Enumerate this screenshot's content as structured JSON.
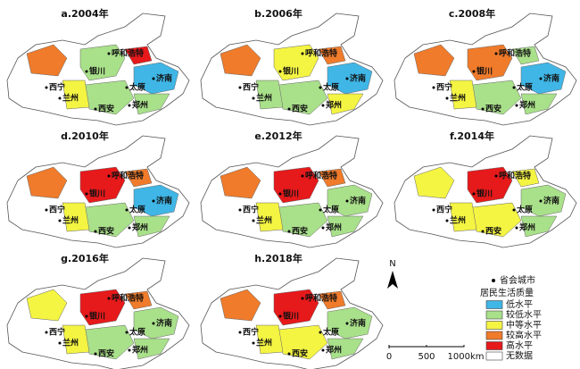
{
  "panels": [
    {
      "title": "a.2004年"
    },
    {
      "title": "b.2006年"
    },
    {
      "title": "c.2008年"
    },
    {
      "title": "d.2010年"
    },
    {
      "title": "e.2012年"
    },
    {
      "title": "f.2014年"
    },
    {
      "title": "g.2016年"
    },
    {
      "title": "h.2018年"
    }
  ],
  "cities": [
    "呼和浩特",
    "银川",
    "济南",
    "西宁",
    "兰州",
    "太原",
    "西安",
    "郑州"
  ],
  "legend": {
    "capital": "省会城市",
    "title": "居民生活质量",
    "items": [
      {
        "label": "低水平",
        "color": "#3fb6e6"
      },
      {
        "label": "较低水平",
        "color": "#a9e08a"
      },
      {
        "label": "中等水平",
        "color": "#f4f443"
      },
      {
        "label": "较高水平",
        "color": "#ef7b2b"
      },
      {
        "label": "高水平",
        "color": "#e6191b"
      },
      {
        "label": "无数据",
        "color": "#ffffff"
      }
    ]
  },
  "north": "N",
  "scale": [
    "0",
    "500",
    "1000km"
  ]
}
